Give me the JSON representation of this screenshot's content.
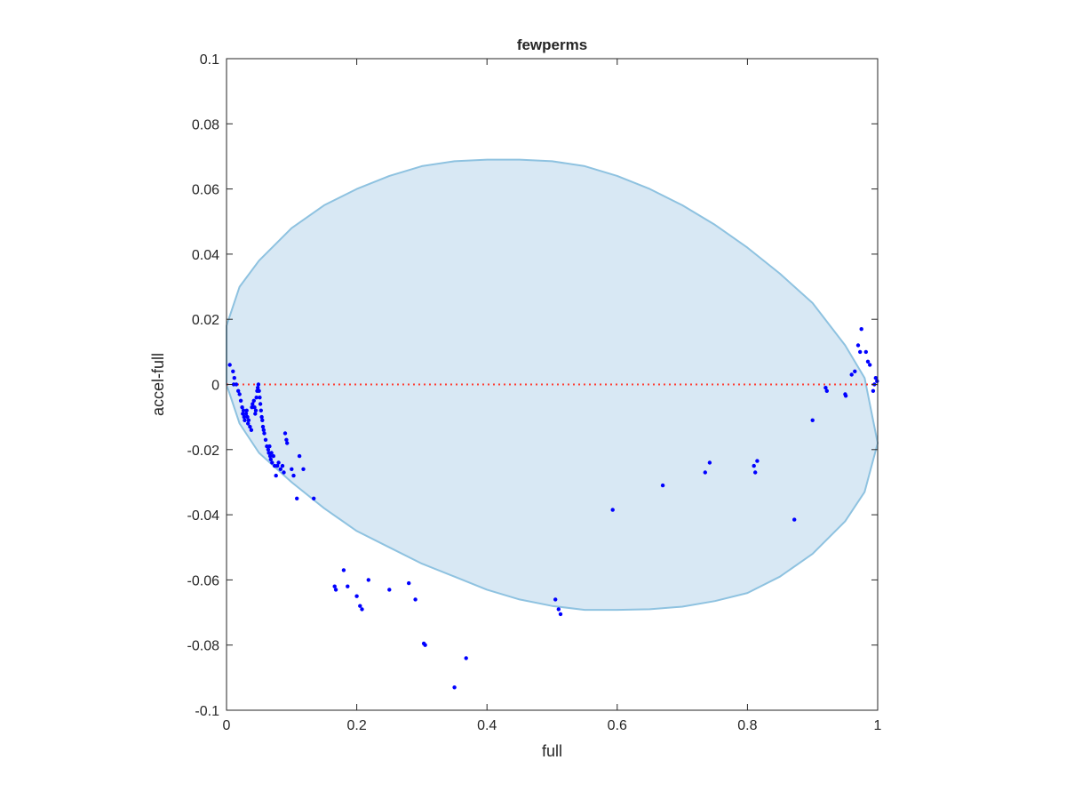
{
  "chart_data": {
    "type": "scatter",
    "title": "fewperms",
    "xlabel": "full",
    "ylabel": "accel-full",
    "xlim": [
      0,
      1
    ],
    "ylim": [
      -0.1,
      0.1
    ],
    "xticks": [
      "0",
      "0.2",
      "0.4",
      "0.6",
      "0.8",
      "1"
    ],
    "yticks": [
      "-0.1",
      "-0.08",
      "-0.06",
      "-0.04",
      "-0.02",
      "0",
      "0.02",
      "0.04",
      "0.06",
      "0.08",
      "0.1"
    ],
    "grid": false,
    "box": true,
    "colors": {
      "points": "#0000ff",
      "zero_line": "#ff3b30",
      "region_fill": "#d8e8f4",
      "region_edge": "#8ec2e0",
      "axes": "#262626"
    },
    "reference_line": {
      "y": 0,
      "style": "dotted"
    },
    "region": {
      "shape": "ellipse-ring",
      "outline": [
        [
          0.0,
          0.018
        ],
        [
          0.02,
          0.03
        ],
        [
          0.05,
          0.038
        ],
        [
          0.1,
          0.048
        ],
        [
          0.15,
          0.055
        ],
        [
          0.2,
          0.06
        ],
        [
          0.25,
          0.064
        ],
        [
          0.3,
          0.067
        ],
        [
          0.35,
          0.0685
        ],
        [
          0.4,
          0.069
        ],
        [
          0.45,
          0.069
        ],
        [
          0.5,
          0.0685
        ],
        [
          0.55,
          0.067
        ],
        [
          0.6,
          0.064
        ],
        [
          0.65,
          0.06
        ],
        [
          0.7,
          0.055
        ],
        [
          0.75,
          0.049
        ],
        [
          0.8,
          0.042
        ],
        [
          0.85,
          0.034
        ],
        [
          0.9,
          0.025
        ],
        [
          0.95,
          0.012
        ],
        [
          0.98,
          0.002
        ],
        [
          1.0,
          -0.018
        ],
        [
          0.98,
          -0.033
        ],
        [
          0.95,
          -0.042
        ],
        [
          0.9,
          -0.052
        ],
        [
          0.85,
          -0.059
        ],
        [
          0.8,
          -0.064
        ],
        [
          0.75,
          -0.0665
        ],
        [
          0.7,
          -0.0682
        ],
        [
          0.65,
          -0.069
        ],
        [
          0.6,
          -0.0692
        ],
        [
          0.55,
          -0.0692
        ],
        [
          0.5,
          -0.068
        ],
        [
          0.45,
          -0.066
        ],
        [
          0.4,
          -0.063
        ],
        [
          0.35,
          -0.059
        ],
        [
          0.3,
          -0.055
        ],
        [
          0.25,
          -0.05
        ],
        [
          0.2,
          -0.045
        ],
        [
          0.15,
          -0.038
        ],
        [
          0.1,
          -0.03
        ],
        [
          0.05,
          -0.021
        ],
        [
          0.02,
          -0.012
        ],
        [
          0.0,
          0.0
        ]
      ]
    },
    "series": [
      {
        "points": [
          [
            0.005,
            0.006
          ],
          [
            0.01,
            0.004
          ],
          [
            0.012,
            0.002
          ],
          [
            0.011,
            0.0
          ],
          [
            0.015,
            0.0
          ],
          [
            0.018,
            -0.002
          ],
          [
            0.02,
            -0.003
          ],
          [
            0.022,
            -0.005
          ],
          [
            0.024,
            -0.007
          ],
          [
            0.025,
            -0.009
          ],
          [
            0.026,
            -0.008
          ],
          [
            0.027,
            -0.01
          ],
          [
            0.028,
            -0.011
          ],
          [
            0.03,
            -0.009
          ],
          [
            0.031,
            -0.008
          ],
          [
            0.032,
            -0.01
          ],
          [
            0.033,
            -0.012
          ],
          [
            0.034,
            -0.011
          ],
          [
            0.036,
            -0.013
          ],
          [
            0.038,
            -0.014
          ],
          [
            0.039,
            -0.007
          ],
          [
            0.04,
            -0.006
          ],
          [
            0.042,
            -0.005
          ],
          [
            0.043,
            -0.007
          ],
          [
            0.044,
            -0.009
          ],
          [
            0.045,
            -0.008
          ],
          [
            0.046,
            -0.004
          ],
          [
            0.047,
            -0.002
          ],
          [
            0.048,
            -0.001
          ],
          [
            0.049,
            0.0
          ],
          [
            0.05,
            -0.002
          ],
          [
            0.051,
            -0.004
          ],
          [
            0.052,
            -0.006
          ],
          [
            0.053,
            -0.008
          ],
          [
            0.054,
            -0.01
          ],
          [
            0.055,
            -0.011
          ],
          [
            0.056,
            -0.013
          ],
          [
            0.057,
            -0.014
          ],
          [
            0.058,
            -0.015
          ],
          [
            0.06,
            -0.017
          ],
          [
            0.062,
            -0.019
          ],
          [
            0.064,
            -0.02
          ],
          [
            0.065,
            -0.021
          ],
          [
            0.066,
            -0.019
          ],
          [
            0.067,
            -0.022
          ],
          [
            0.068,
            -0.023
          ],
          [
            0.069,
            -0.021
          ],
          [
            0.07,
            -0.024
          ],
          [
            0.072,
            -0.022
          ],
          [
            0.074,
            -0.025
          ],
          [
            0.076,
            -0.028
          ],
          [
            0.078,
            -0.025
          ],
          [
            0.08,
            -0.024
          ],
          [
            0.083,
            -0.026
          ],
          [
            0.086,
            -0.025
          ],
          [
            0.088,
            -0.027
          ],
          [
            0.09,
            -0.015
          ],
          [
            0.092,
            -0.017
          ],
          [
            0.093,
            -0.018
          ],
          [
            0.1,
            -0.026
          ],
          [
            0.103,
            -0.028
          ],
          [
            0.108,
            -0.035
          ],
          [
            0.112,
            -0.022
          ],
          [
            0.118,
            -0.026
          ],
          [
            0.134,
            -0.035
          ],
          [
            0.166,
            -0.062
          ],
          [
            0.168,
            -0.063
          ],
          [
            0.18,
            -0.057
          ],
          [
            0.186,
            -0.062
          ],
          [
            0.2,
            -0.065
          ],
          [
            0.205,
            -0.068
          ],
          [
            0.208,
            -0.069
          ],
          [
            0.218,
            -0.06
          ],
          [
            0.25,
            -0.063
          ],
          [
            0.28,
            -0.061
          ],
          [
            0.29,
            -0.066
          ],
          [
            0.303,
            -0.0795
          ],
          [
            0.305,
            -0.08
          ],
          [
            0.35,
            -0.093
          ],
          [
            0.368,
            -0.084
          ],
          [
            0.505,
            -0.066
          ],
          [
            0.51,
            -0.069
          ],
          [
            0.513,
            -0.0705
          ],
          [
            0.593,
            -0.0385
          ],
          [
            0.67,
            -0.031
          ],
          [
            0.735,
            -0.027
          ],
          [
            0.742,
            -0.024
          ],
          [
            0.81,
            -0.025
          ],
          [
            0.812,
            -0.027
          ],
          [
            0.815,
            -0.0235
          ],
          [
            0.872,
            -0.0415
          ],
          [
            0.9,
            -0.011
          ],
          [
            0.92,
            -0.001
          ],
          [
            0.922,
            -0.002
          ],
          [
            0.95,
            -0.003
          ],
          [
            0.951,
            -0.0035
          ],
          [
            0.96,
            0.003
          ],
          [
            0.965,
            0.004
          ],
          [
            0.97,
            0.012
          ],
          [
            0.973,
            0.01
          ],
          [
            0.975,
            0.017
          ],
          [
            0.982,
            0.01
          ],
          [
            0.985,
            0.007
          ],
          [
            0.988,
            0.006
          ],
          [
            0.993,
            -0.002
          ],
          [
            0.995,
            0.0
          ],
          [
            0.997,
            0.002
          ],
          [
            0.999,
            0.001
          ]
        ]
      }
    ]
  }
}
